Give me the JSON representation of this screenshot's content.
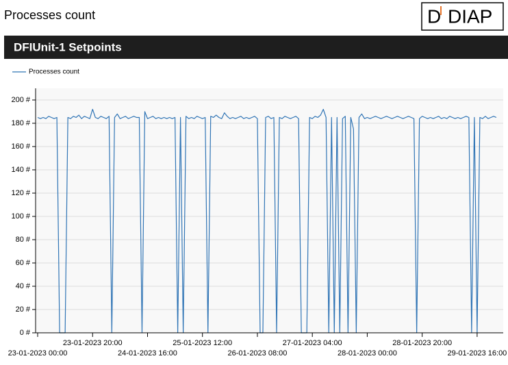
{
  "header": {
    "title": "Processes count",
    "logo_mark": "D",
    "logo_text": "DIAP"
  },
  "section": {
    "title": "DFIUnit-1 Setpoints"
  },
  "chart_data": {
    "type": "line",
    "x": [
      "23-01-2023 00:00",
      "23-01-2023 01:00",
      "23-01-2023 02:00",
      "23-01-2023 03:00",
      "23-01-2023 04:00",
      "23-01-2023 05:00",
      "23-01-2023 06:00",
      "23-01-2023 07:00",
      "23-01-2023 08:00",
      "23-01-2023 09:00",
      "23-01-2023 10:00",
      "23-01-2023 11:00",
      "23-01-2023 12:00",
      "23-01-2023 13:00",
      "23-01-2023 14:00",
      "23-01-2023 15:00",
      "23-01-2023 16:00",
      "23-01-2023 17:00",
      "23-01-2023 18:00",
      "23-01-2023 19:00",
      "23-01-2023 20:00",
      "23-01-2023 21:00",
      "23-01-2023 22:00",
      "23-01-2023 23:00",
      "24-01-2023 00:00",
      "24-01-2023 01:00",
      "24-01-2023 02:00",
      "24-01-2023 03:00",
      "24-01-2023 04:00",
      "24-01-2023 05:00",
      "24-01-2023 06:00",
      "24-01-2023 07:00",
      "24-01-2023 08:00",
      "24-01-2023 09:00",
      "24-01-2023 10:00",
      "24-01-2023 11:00",
      "24-01-2023 12:00",
      "24-01-2023 13:00",
      "24-01-2023 14:00",
      "24-01-2023 15:00",
      "24-01-2023 16:00",
      "24-01-2023 17:00",
      "24-01-2023 18:00",
      "24-01-2023 19:00",
      "24-01-2023 20:00",
      "24-01-2023 21:00",
      "24-01-2023 22:00",
      "24-01-2023 23:00",
      "25-01-2023 00:00",
      "25-01-2023 01:00",
      "25-01-2023 02:00",
      "25-01-2023 03:00",
      "25-01-2023 04:00",
      "25-01-2023 05:00",
      "25-01-2023 06:00",
      "25-01-2023 07:00",
      "25-01-2023 08:00",
      "25-01-2023 09:00",
      "25-01-2023 10:00",
      "25-01-2023 11:00",
      "25-01-2023 12:00",
      "25-01-2023 13:00",
      "25-01-2023 14:00",
      "25-01-2023 15:00",
      "25-01-2023 16:00",
      "25-01-2023 17:00",
      "25-01-2023 18:00",
      "25-01-2023 19:00",
      "25-01-2023 20:00",
      "25-01-2023 21:00",
      "25-01-2023 22:00",
      "25-01-2023 23:00",
      "26-01-2023 00:00",
      "26-01-2023 01:00",
      "26-01-2023 02:00",
      "26-01-2023 03:00",
      "26-01-2023 04:00",
      "26-01-2023 05:00",
      "26-01-2023 06:00",
      "26-01-2023 07:00",
      "26-01-2023 08:00",
      "26-01-2023 09:00",
      "26-01-2023 10:00",
      "26-01-2023 11:00",
      "26-01-2023 12:00",
      "26-01-2023 13:00",
      "26-01-2023 14:00",
      "26-01-2023 15:00",
      "26-01-2023 16:00",
      "26-01-2023 17:00",
      "26-01-2023 18:00",
      "26-01-2023 19:00",
      "26-01-2023 20:00",
      "26-01-2023 21:00",
      "26-01-2023 22:00",
      "26-01-2023 23:00",
      "27-01-2023 00:00",
      "27-01-2023 01:00",
      "27-01-2023 02:00",
      "27-01-2023 03:00",
      "27-01-2023 04:00",
      "27-01-2023 05:00",
      "27-01-2023 06:00",
      "27-01-2023 07:00",
      "27-01-2023 08:00",
      "27-01-2023 09:00",
      "27-01-2023 10:00",
      "27-01-2023 11:00",
      "27-01-2023 12:00",
      "27-01-2023 13:00",
      "27-01-2023 14:00",
      "27-01-2023 15:00",
      "27-01-2023 16:00",
      "27-01-2023 17:00",
      "27-01-2023 18:00",
      "27-01-2023 19:00",
      "27-01-2023 20:00",
      "27-01-2023 21:00",
      "27-01-2023 22:00",
      "27-01-2023 23:00",
      "28-01-2023 00:00",
      "28-01-2023 01:00",
      "28-01-2023 02:00",
      "28-01-2023 03:00",
      "28-01-2023 04:00",
      "28-01-2023 05:00",
      "28-01-2023 06:00",
      "28-01-2023 07:00",
      "28-01-2023 08:00",
      "28-01-2023 09:00",
      "28-01-2023 10:00",
      "28-01-2023 11:00",
      "28-01-2023 12:00",
      "28-01-2023 13:00",
      "28-01-2023 14:00",
      "28-01-2023 15:00",
      "28-01-2023 16:00",
      "28-01-2023 17:00",
      "28-01-2023 18:00",
      "28-01-2023 19:00",
      "28-01-2023 20:00",
      "28-01-2023 21:00",
      "28-01-2023 22:00",
      "28-01-2023 23:00",
      "29-01-2023 00:00",
      "29-01-2023 01:00",
      "29-01-2023 02:00",
      "29-01-2023 03:00",
      "29-01-2023 04:00",
      "29-01-2023 05:00",
      "29-01-2023 06:00",
      "29-01-2023 07:00",
      "29-01-2023 08:00",
      "29-01-2023 09:00",
      "29-01-2023 10:00",
      "29-01-2023 11:00",
      "29-01-2023 12:00",
      "29-01-2023 13:00",
      "29-01-2023 14:00",
      "29-01-2023 15:00",
      "29-01-2023 16:00",
      "29-01-2023 17:00",
      "29-01-2023 18:00",
      "29-01-2023 19:00",
      "29-01-2023 20:00",
      "29-01-2023 21:00",
      "29-01-2023 22:00",
      "29-01-2023 23:00"
    ],
    "series": [
      {
        "name": "Processes count",
        "color": "#2f74b5",
        "values": [
          185,
          184,
          185,
          184,
          186,
          185,
          184,
          185,
          0,
          0,
          0,
          185,
          184,
          186,
          185,
          187,
          184,
          186,
          185,
          184,
          192,
          185,
          184,
          186,
          185,
          184,
          186,
          0,
          185,
          188,
          184,
          185,
          186,
          184,
          185,
          186,
          185,
          185,
          0,
          190,
          184,
          185,
          186,
          184,
          185,
          184,
          185,
          184,
          185,
          184,
          185,
          0,
          185,
          0,
          186,
          184,
          185,
          184,
          186,
          185,
          184,
          185,
          0,
          186,
          185,
          187,
          185,
          184,
          189,
          186,
          184,
          185,
          184,
          185,
          186,
          184,
          185,
          184,
          185,
          186,
          184,
          0,
          0,
          185,
          186,
          184,
          185,
          0,
          185,
          184,
          186,
          185,
          184,
          185,
          186,
          184,
          0,
          0,
          0,
          185,
          184,
          186,
          185,
          187,
          192,
          185,
          0,
          185,
          0,
          185,
          0,
          184,
          186,
          0,
          185,
          175,
          0,
          185,
          188,
          184,
          185,
          184,
          185,
          186,
          185,
          184,
          185,
          186,
          185,
          184,
          185,
          186,
          185,
          184,
          185,
          186,
          185,
          184,
          0,
          184,
          186,
          185,
          184,
          185,
          184,
          185,
          186,
          184,
          185,
          184,
          186,
          185,
          184,
          185,
          184,
          185,
          186,
          185,
          0,
          185,
          0,
          185,
          184,
          186,
          184,
          185,
          186,
          185
        ]
      }
    ],
    "xlim": [
      "22-01-2023 23:15",
      "30-01-2023 01:30"
    ],
    "xticks": [
      {
        "value": "23-01-2023 00:00",
        "label": "23-01-2023 00:00"
      },
      {
        "value": "23-01-2023 20:00",
        "label": "23-01-2023 20:00"
      },
      {
        "value": "24-01-2023 16:00",
        "label": "24-01-2023 16:00"
      },
      {
        "value": "25-01-2023 12:00",
        "label": "25-01-2023 12:00"
      },
      {
        "value": "26-01-2023 08:00",
        "label": "26-01-2023 08:00"
      },
      {
        "value": "27-01-2023 04:00",
        "label": "27-01-2023 04:00"
      },
      {
        "value": "28-01-2023 00:00",
        "label": "28-01-2023 00:00"
      },
      {
        "value": "28-01-2023 20:00",
        "label": "28-01-2023 20:00"
      },
      {
        "value": "29-01-2023 16:00",
        "label": "29-01-2023 16:00"
      }
    ],
    "ylim": [
      0,
      210
    ],
    "yticks": [
      {
        "value": 0,
        "label": "0 #"
      },
      {
        "value": 20,
        "label": "20 #"
      },
      {
        "value": 40,
        "label": "40 #"
      },
      {
        "value": 60,
        "label": "60 #"
      },
      {
        "value": 80,
        "label": "80 #"
      },
      {
        "value": 100,
        "label": "100 #"
      },
      {
        "value": 120,
        "label": "120 #"
      },
      {
        "value": 140,
        "label": "140 #"
      },
      {
        "value": 160,
        "label": "160 #"
      },
      {
        "value": 180,
        "label": "180 #"
      },
      {
        "value": 200,
        "label": "200 #"
      }
    ],
    "grid": true,
    "legend": "top-left"
  }
}
